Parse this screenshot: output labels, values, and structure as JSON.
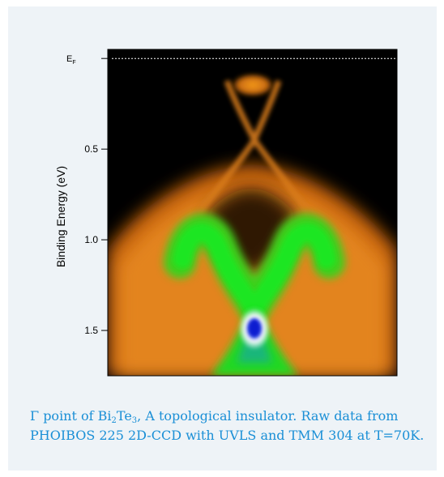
{
  "chart_data": {
    "type": "heatmap",
    "title": "",
    "xlabel": "",
    "ylabel": "Binding Energy (eV)",
    "ylim": [
      1.75,
      -0.05
    ],
    "fermi_label": {
      "base": "E",
      "sub": "F"
    },
    "fermi_line_energy": 0.0,
    "y_ticks": [
      {
        "value": 0.5,
        "label": "0.5"
      },
      {
        "value": 1.0,
        "label": "1.0"
      },
      {
        "value": 1.5,
        "label": "1.5"
      }
    ],
    "x_range": [
      -1,
      1
    ],
    "colormap": [
      "#000000",
      "#3a1200",
      "#8a3f00",
      "#e07b10",
      "#f8a540",
      "#7fff20",
      "#19e81d",
      "#14a8a0",
      "#1f50e0",
      "#ffffff",
      "#0a1ed0"
    ],
    "features": {
      "dirac_point_energy": 0.33,
      "surface_state_top_energy": 0.04,
      "bulk_conduction_band_energy": 0.02,
      "m_band_shoulder_energy": 1.05,
      "m_band_shoulder_k": 0.48,
      "m_band_bottom_energy": 1.33,
      "bright_spot_energy": 1.47,
      "bright_spot_k": 0.0
    }
  },
  "caption": {
    "part1": "Γ point of Bi",
    "sub1": "2",
    "part2": "Te",
    "sub2": "3",
    "part3": ", A topological insulator. Raw data from PHOIBOS 225 2D-CCD with UVLS and TMM 304 at T=70K."
  },
  "colors": {
    "card_background": "#eef3f7",
    "caption_text": "#1a8fd6"
  }
}
